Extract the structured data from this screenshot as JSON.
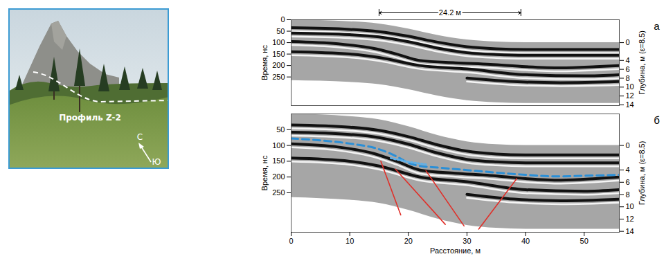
{
  "photo": {
    "profile_label": "Профиль Z-2",
    "compass": {
      "north": "С",
      "south": "Ю"
    }
  },
  "chart_data": [
    {
      "type": "radargram",
      "label": "а",
      "xlim": [
        0,
        56
      ],
      "ylim": [
        0,
        375
      ],
      "yticks": [
        0,
        50,
        100,
        150,
        200,
        250
      ],
      "y_label": "Время, нс",
      "y2lim": [
        -5.15,
        14.15
      ],
      "y2ticks": [
        0,
        4,
        6,
        8,
        10,
        12,
        14
      ],
      "y2_label": "Глубина, м (ε=8.5)",
      "surface": {
        "x": [
          0,
          5,
          10,
          15,
          20,
          25,
          30,
          35,
          40,
          45,
          50,
          56
        ],
        "y": [
          0,
          3,
          8,
          18,
          40,
          68,
          88,
          97,
          100,
          100,
          100,
          100
        ]
      },
      "bottom": {
        "x": [
          0,
          5,
          10,
          15,
          20,
          25,
          30,
          35,
          40,
          45,
          50,
          56
        ],
        "y": [
          265,
          268,
          273,
          283,
          305,
          333,
          353,
          362,
          365,
          365,
          365,
          365
        ]
      },
      "reflectors": [
        {
          "x": [
            0,
            8,
            14,
            18,
            22,
            28,
            34,
            40,
            46,
            52,
            56
          ],
          "y": [
            95,
            105,
            125,
            150,
            178,
            188,
            195,
            205,
            210,
            205,
            200
          ]
        },
        {
          "x": [
            0,
            10,
            15,
            20,
            25,
            30,
            35,
            40,
            56
          ],
          "y": [
            35,
            42,
            52,
            72,
            98,
            118,
            127,
            130,
            130
          ]
        },
        {
          "x": [
            0,
            10,
            15,
            20,
            25,
            30,
            35,
            40,
            56
          ],
          "y": [
            58,
            65,
            75,
            96,
            124,
            144,
            152,
            155,
            155
          ]
        },
        {
          "x": [
            0,
            10,
            15,
            22,
            30,
            40,
            50,
            56
          ],
          "y": [
            140,
            150,
            165,
            200,
            215,
            240,
            245,
            240
          ]
        },
        {
          "x": [
            30,
            38,
            46,
            56
          ],
          "y": [
            255,
            270,
            275,
            270
          ]
        }
      ],
      "annotations": [
        {
          "text": "24.2 м",
          "x": [
            15,
            39.2
          ]
        }
      ]
    },
    {
      "type": "radargram",
      "label": "б",
      "xlim": [
        0,
        56
      ],
      "xticks": [
        0,
        10,
        20,
        30,
        40,
        50
      ],
      "x_label": "Расстояние, м",
      "ylim": [
        0,
        375
      ],
      "yticks": [
        50,
        100,
        150,
        200,
        250
      ],
      "y_label": "Время, нс",
      "y2lim": [
        -5.15,
        14.15
      ],
      "y2ticks": [
        0,
        4,
        6,
        8,
        10,
        12,
        14
      ],
      "y2_label": "Глубина, м (ε=8.5)",
      "surface": {
        "x": [
          0,
          5,
          10,
          15,
          20,
          25,
          30,
          35,
          40,
          45,
          50,
          56
        ],
        "y": [
          0,
          3,
          8,
          18,
          40,
          68,
          88,
          97,
          100,
          100,
          100,
          100
        ]
      },
      "bottom": {
        "x": [
          0,
          5,
          10,
          15,
          20,
          25,
          30,
          35,
          40,
          45,
          50,
          56
        ],
        "y": [
          265,
          268,
          273,
          283,
          305,
          333,
          353,
          362,
          365,
          365,
          365,
          365
        ]
      },
      "reflectors": [
        {
          "x": [
            0,
            8,
            14,
            18,
            22,
            28,
            34,
            40,
            46,
            52,
            56
          ],
          "y": [
            95,
            105,
            125,
            150,
            178,
            188,
            195,
            205,
            210,
            205,
            200
          ]
        },
        {
          "x": [
            0,
            10,
            15,
            20,
            25,
            30,
            35,
            40,
            56
          ],
          "y": [
            35,
            42,
            52,
            72,
            98,
            118,
            127,
            130,
            130
          ]
        },
        {
          "x": [
            0,
            10,
            15,
            20,
            25,
            30,
            35,
            40,
            56
          ],
          "y": [
            58,
            65,
            75,
            96,
            124,
            144,
            152,
            155,
            155
          ]
        },
        {
          "x": [
            0,
            10,
            15,
            22,
            30,
            40,
            50,
            56
          ],
          "y": [
            140,
            150,
            165,
            200,
            215,
            240,
            245,
            240
          ]
        },
        {
          "x": [
            30,
            38,
            46,
            56
          ],
          "y": [
            255,
            270,
            275,
            270
          ]
        }
      ],
      "horizons": [
        {
          "color": "#2b8fd6",
          "line_style": "dashed",
          "x": [
            0,
            5,
            10,
            15,
            18,
            20,
            22,
            25,
            30,
            35,
            40,
            45,
            50,
            56
          ],
          "y": [
            78,
            84,
            94,
            112,
            135,
            155,
            165,
            170,
            178,
            186,
            193,
            198,
            196,
            193
          ]
        },
        {
          "color": "#5fb0e8",
          "line_style": "dotted",
          "x": [
            17,
            20,
            23
          ],
          "y": [
            140,
            152,
            160
          ]
        }
      ],
      "faults": {
        "color": "#e0302a",
        "lines": [
          {
            "x": [
              15.3,
              18.7
            ],
            "y": [
              150,
              320
            ]
          },
          {
            "x": [
              17.8,
              26.3
            ],
            "y": [
              175,
              350
            ]
          },
          {
            "x": [
              23,
              29.5
            ],
            "y": [
              180,
              355
            ]
          },
          {
            "x": [
              32,
              38.5
            ],
            "y": [
              365,
              205
            ]
          }
        ]
      }
    }
  ]
}
